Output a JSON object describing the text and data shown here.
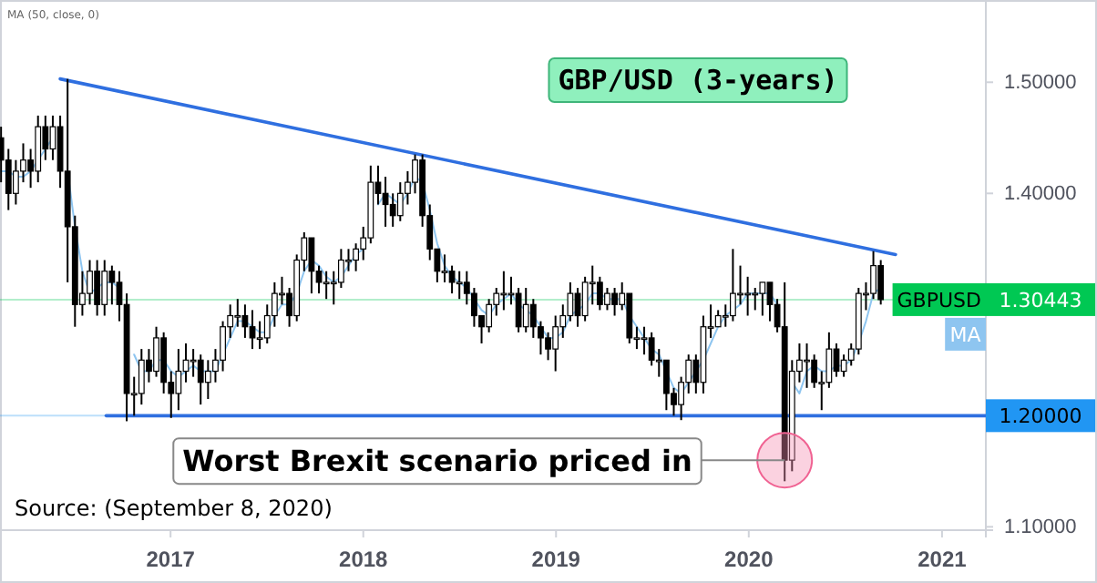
{
  "chart_data": {
    "type": "candlestick",
    "title": "GBP/USD (3-years)",
    "annotations": [
      "MA (50, close, 0)",
      {
        "text": "Worst Brexit scenario priced in",
        "x": "2020-03-09",
        "y": 1.16
      },
      "Source: (September 8, 2020)"
    ],
    "x": [
      "2016-02-15",
      "2016-02-29",
      "2016-03-14",
      "2016-03-28",
      "2016-04-11",
      "2016-04-25",
      "2016-05-09",
      "2016-05-23",
      "2016-06-06",
      "2016-06-20",
      "2016-07-04",
      "2016-07-18",
      "2016-08-01",
      "2016-08-15",
      "2016-08-29",
      "2016-09-12",
      "2016-09-26",
      "2016-10-10",
      "2016-10-24",
      "2016-11-07",
      "2016-11-21",
      "2016-12-05",
      "2016-12-19",
      "2017-01-02",
      "2017-01-16",
      "2017-01-30",
      "2017-02-13",
      "2017-02-27",
      "2017-03-13",
      "2017-03-27",
      "2017-04-10",
      "2017-04-24",
      "2017-05-08",
      "2017-05-22",
      "2017-06-05",
      "2017-06-19",
      "2017-07-03",
      "2017-07-17",
      "2017-07-31",
      "2017-08-14",
      "2017-08-28",
      "2017-09-11",
      "2017-09-25",
      "2017-10-09",
      "2017-10-23",
      "2017-11-06",
      "2017-11-20",
      "2017-12-04",
      "2017-12-18",
      "2018-01-01",
      "2018-01-15",
      "2018-01-29",
      "2018-02-12",
      "2018-02-26",
      "2018-03-12",
      "2018-03-26",
      "2018-04-09",
      "2018-04-23",
      "2018-05-07",
      "2018-05-21",
      "2018-06-04",
      "2018-06-18",
      "2018-07-02",
      "2018-07-16",
      "2018-07-30",
      "2018-08-13",
      "2018-08-27",
      "2018-09-10",
      "2018-09-24",
      "2018-10-08",
      "2018-10-22",
      "2018-11-05",
      "2018-11-19",
      "2018-12-03",
      "2018-12-17",
      "2018-12-31",
      "2019-01-14",
      "2019-01-28",
      "2019-02-11",
      "2019-02-25",
      "2019-03-11",
      "2019-03-25",
      "2019-04-08",
      "2019-04-22",
      "2019-05-06",
      "2019-05-20",
      "2019-06-03",
      "2019-06-17",
      "2019-07-01",
      "2019-07-15",
      "2019-07-29",
      "2019-08-12",
      "2019-08-26",
      "2019-09-09",
      "2019-09-23",
      "2019-10-07",
      "2019-10-21",
      "2019-11-04",
      "2019-11-18",
      "2019-12-02",
      "2019-12-16",
      "2019-12-30",
      "2020-01-13",
      "2020-01-27",
      "2020-02-10",
      "2020-02-24",
      "2020-03-09",
      "2020-03-23",
      "2020-04-06",
      "2020-04-20",
      "2020-05-04",
      "2020-05-18",
      "2020-06-01",
      "2020-06-15",
      "2020-06-29",
      "2020-07-13",
      "2020-07-27",
      "2020-08-10",
      "2020-08-24",
      "2020-09-07"
    ],
    "xlim": [
      "2016-02-13",
      "2021-03-25"
    ],
    "xticks": [
      {
        "value": "2017-01-01",
        "label": "2017"
      },
      {
        "value": "2018-01-01",
        "label": "2018"
      },
      {
        "value": "2019-01-01",
        "label": "2019"
      },
      {
        "value": "2020-01-01",
        "label": "2020"
      },
      {
        "value": "2021-01-01",
        "label": "2021"
      }
    ],
    "ylim": [
      1.097,
      1.574
    ],
    "yticks": [
      {
        "value": 1.1,
        "label": "1.10000"
      },
      {
        "value": 1.4,
        "label": "1.40000"
      },
      {
        "value": 1.5,
        "label": "1.50000"
      }
    ],
    "ref_lines": [
      {
        "axis": "y",
        "value": 1.2,
        "label": "1.20000",
        "color": "#2196f3"
      },
      {
        "axis": "y",
        "value": 1.30443,
        "label": "1.30443",
        "color": "#00c853"
      }
    ],
    "series": [
      {
        "type": "line",
        "name": "MA",
        "color": "#8ec5f0",
        "values": [
          1.42,
          1.42,
          1.415,
          1.415,
          1.42,
          1.43,
          1.44,
          1.45,
          null,
          1.42,
          1.37,
          1.33,
          1.31,
          1.315,
          1.32,
          1.32,
          1.315,
          null,
          1.255,
          1.24,
          1.24,
          1.25,
          1.25,
          1.24,
          1.235,
          1.24,
          1.245,
          1.24,
          1.24,
          1.24,
          1.255,
          1.27,
          1.285,
          1.285,
          1.28,
          1.275,
          1.275,
          1.29,
          1.3,
          1.3,
          1.31,
          1.33,
          1.34,
          1.335,
          1.325,
          1.32,
          1.325,
          1.335,
          1.345,
          1.35,
          null,
          1.39,
          1.4,
          1.395,
          1.39,
          1.4,
          1.415,
          1.41,
          1.385,
          1.355,
          1.335,
          1.325,
          1.32,
          1.315,
          1.305,
          1.295,
          1.29,
          1.3,
          1.305,
          1.31,
          1.3,
          1.295,
          1.29,
          1.28,
          1.27,
          1.27,
          1.275,
          1.29,
          1.295,
          1.3,
          1.31,
          1.31,
          1.305,
          1.305,
          1.305,
          1.29,
          1.28,
          1.27,
          1.26,
          1.255,
          1.24,
          1.225,
          1.22,
          1.23,
          1.24,
          1.25,
          1.265,
          1.28,
          1.29,
          1.295,
          1.3,
          1.31,
          1.31,
          1.31,
          1.31,
          1.3,
          null,
          1.23,
          1.22,
          1.24,
          1.245,
          1.24,
          1.24,
          1.245,
          1.245,
          1.25,
          1.265,
          1.285,
          1.31,
          1.315
        ]
      },
      {
        "type": "line",
        "color": "#2f6fe0",
        "x": [
          "2016-06-06",
          "2020-10-05"
        ],
        "values": [
          1.503,
          1.345
        ]
      },
      {
        "type": "line",
        "color": "#2f6fe0",
        "x": [
          "2016-09-01",
          "2021-03-25"
        ],
        "values": [
          1.2,
          1.2
        ]
      },
      {
        "name": "GBPUSD",
        "color": "#000000",
        "ohlc": [
          [
            1.45,
            1.46,
            1.41,
            1.43
          ],
          [
            1.43,
            1.44,
            1.385,
            1.4
          ],
          [
            1.4,
            1.43,
            1.39,
            1.42
          ],
          [
            1.42,
            1.445,
            1.41,
            1.43
          ],
          [
            1.43,
            1.44,
            1.405,
            1.42
          ],
          [
            1.42,
            1.47,
            1.41,
            1.46
          ],
          [
            1.46,
            1.47,
            1.43,
            1.44
          ],
          [
            1.44,
            1.47,
            1.43,
            1.46
          ],
          [
            1.46,
            1.47,
            1.405,
            1.42
          ],
          [
            1.42,
            1.503,
            1.32,
            1.37
          ],
          [
            1.37,
            1.38,
            1.28,
            1.3
          ],
          [
            1.3,
            1.33,
            1.29,
            1.31
          ],
          [
            1.31,
            1.34,
            1.3,
            1.33
          ],
          [
            1.33,
            1.34,
            1.29,
            1.3
          ],
          [
            1.3,
            1.34,
            1.29,
            1.33
          ],
          [
            1.33,
            1.335,
            1.3,
            1.32
          ],
          [
            1.32,
            1.33,
            1.285,
            1.3
          ],
          [
            1.3,
            1.31,
            1.195,
            1.22
          ],
          [
            1.22,
            1.235,
            1.2,
            1.22
          ],
          [
            1.22,
            1.26,
            1.21,
            1.25
          ],
          [
            1.25,
            1.26,
            1.23,
            1.24
          ],
          [
            1.24,
            1.28,
            1.235,
            1.27
          ],
          [
            1.27,
            1.275,
            1.22,
            1.23
          ],
          [
            1.23,
            1.24,
            1.198,
            1.22
          ],
          [
            1.22,
            1.26,
            1.205,
            1.24
          ],
          [
            1.24,
            1.265,
            1.23,
            1.25
          ],
          [
            1.25,
            1.26,
            1.235,
            1.25
          ],
          [
            1.25,
            1.255,
            1.21,
            1.23
          ],
          [
            1.23,
            1.25,
            1.215,
            1.24
          ],
          [
            1.24,
            1.26,
            1.23,
            1.25
          ],
          [
            1.25,
            1.285,
            1.24,
            1.28
          ],
          [
            1.28,
            1.3,
            1.27,
            1.29
          ],
          [
            1.29,
            1.305,
            1.28,
            1.29
          ],
          [
            1.29,
            1.3,
            1.27,
            1.28
          ],
          [
            1.28,
            1.295,
            1.26,
            1.27
          ],
          [
            1.27,
            1.285,
            1.26,
            1.27
          ],
          [
            1.27,
            1.3,
            1.265,
            1.29
          ],
          [
            1.29,
            1.32,
            1.28,
            1.31
          ],
          [
            1.31,
            1.325,
            1.3,
            1.31
          ],
          [
            1.31,
            1.315,
            1.28,
            1.29
          ],
          [
            1.29,
            1.345,
            1.285,
            1.34
          ],
          [
            1.34,
            1.365,
            1.33,
            1.36
          ],
          [
            1.36,
            1.36,
            1.31,
            1.33
          ],
          [
            1.33,
            1.335,
            1.31,
            1.32
          ],
          [
            1.32,
            1.33,
            1.305,
            1.32
          ],
          [
            1.32,
            1.33,
            1.3,
            1.32
          ],
          [
            1.32,
            1.35,
            1.315,
            1.34
          ],
          [
            1.34,
            1.35,
            1.33,
            1.34
          ],
          [
            1.34,
            1.355,
            1.33,
            1.35
          ],
          [
            1.35,
            1.37,
            1.34,
            1.36
          ],
          [
            1.36,
            1.425,
            1.355,
            1.41
          ],
          [
            1.41,
            1.425,
            1.39,
            1.4
          ],
          [
            1.4,
            1.415,
            1.37,
            1.39
          ],
          [
            1.39,
            1.4,
            1.37,
            1.38
          ],
          [
            1.38,
            1.41,
            1.375,
            1.4
          ],
          [
            1.4,
            1.42,
            1.39,
            1.41
          ],
          [
            1.41,
            1.435,
            1.4,
            1.43
          ],
          [
            1.43,
            1.435,
            1.37,
            1.38
          ],
          [
            1.38,
            1.39,
            1.34,
            1.35
          ],
          [
            1.35,
            1.35,
            1.32,
            1.33
          ],
          [
            1.33,
            1.345,
            1.32,
            1.33
          ],
          [
            1.33,
            1.335,
            1.31,
            1.32
          ],
          [
            1.32,
            1.33,
            1.305,
            1.32
          ],
          [
            1.32,
            1.33,
            1.3,
            1.31
          ],
          [
            1.31,
            1.315,
            1.28,
            1.29
          ],
          [
            1.29,
            1.29,
            1.265,
            1.28
          ],
          [
            1.28,
            1.305,
            1.275,
            1.3
          ],
          [
            1.3,
            1.315,
            1.29,
            1.31
          ],
          [
            1.31,
            1.33,
            1.295,
            1.31
          ],
          [
            1.31,
            1.325,
            1.3,
            1.31
          ],
          [
            1.31,
            1.315,
            1.275,
            1.28
          ],
          [
            1.28,
            1.315,
            1.275,
            1.3
          ],
          [
            1.3,
            1.305,
            1.27,
            1.28
          ],
          [
            1.28,
            1.285,
            1.255,
            1.27
          ],
          [
            1.27,
            1.275,
            1.25,
            1.26
          ],
          [
            1.26,
            1.29,
            1.24,
            1.28
          ],
          [
            1.28,
            1.3,
            1.27,
            1.29
          ],
          [
            1.29,
            1.32,
            1.285,
            1.31
          ],
          [
            1.31,
            1.315,
            1.28,
            1.29
          ],
          [
            1.29,
            1.325,
            1.285,
            1.32
          ],
          [
            1.32,
            1.335,
            1.3,
            1.32
          ],
          [
            1.32,
            1.325,
            1.295,
            1.3
          ],
          [
            1.3,
            1.315,
            1.295,
            1.31
          ],
          [
            1.31,
            1.315,
            1.29,
            1.3
          ],
          [
            1.3,
            1.32,
            1.295,
            1.31
          ],
          [
            1.31,
            1.31,
            1.265,
            1.27
          ],
          [
            1.27,
            1.28,
            1.26,
            1.27
          ],
          [
            1.27,
            1.28,
            1.255,
            1.27
          ],
          [
            1.27,
            1.275,
            1.245,
            1.25
          ],
          [
            1.25,
            1.26,
            1.235,
            1.25
          ],
          [
            1.25,
            1.25,
            1.205,
            1.22
          ],
          [
            1.22,
            1.225,
            1.2,
            1.21
          ],
          [
            1.21,
            1.235,
            1.196,
            1.23
          ],
          [
            1.23,
            1.255,
            1.22,
            1.25
          ],
          [
            1.25,
            1.255,
            1.22,
            1.23
          ],
          [
            1.23,
            1.29,
            1.22,
            1.28
          ],
          [
            1.28,
            1.3,
            1.27,
            1.28
          ],
          [
            1.28,
            1.295,
            1.28,
            1.29
          ],
          [
            1.29,
            1.3,
            1.28,
            1.29
          ],
          [
            1.29,
            1.35,
            1.285,
            1.31
          ],
          [
            1.31,
            1.335,
            1.3,
            1.31
          ],
          [
            1.31,
            1.325,
            1.29,
            1.31
          ],
          [
            1.31,
            1.315,
            1.295,
            1.31
          ],
          [
            1.31,
            1.32,
            1.29,
            1.32
          ],
          [
            1.32,
            1.32,
            1.285,
            1.3
          ],
          [
            1.3,
            1.305,
            1.275,
            1.28
          ],
          [
            1.28,
            1.32,
            1.141,
            1.16
          ],
          [
            1.16,
            1.25,
            1.15,
            1.24
          ],
          [
            1.24,
            1.265,
            1.23,
            1.25
          ],
          [
            1.25,
            1.265,
            1.225,
            1.25
          ],
          [
            1.25,
            1.255,
            1.225,
            1.23
          ],
          [
            1.23,
            1.24,
            1.205,
            1.23
          ],
          [
            1.23,
            1.275,
            1.225,
            1.26
          ],
          [
            1.26,
            1.265,
            1.235,
            1.24
          ],
          [
            1.24,
            1.255,
            1.235,
            1.25
          ],
          [
            1.25,
            1.265,
            1.245,
            1.26
          ],
          [
            1.26,
            1.315,
            1.255,
            1.31
          ],
          [
            1.31,
            1.32,
            1.295,
            1.31
          ],
          [
            1.31,
            1.348,
            1.305,
            1.335
          ],
          [
            1.335,
            1.34,
            1.3,
            1.30443
          ]
        ]
      }
    ]
  }
}
